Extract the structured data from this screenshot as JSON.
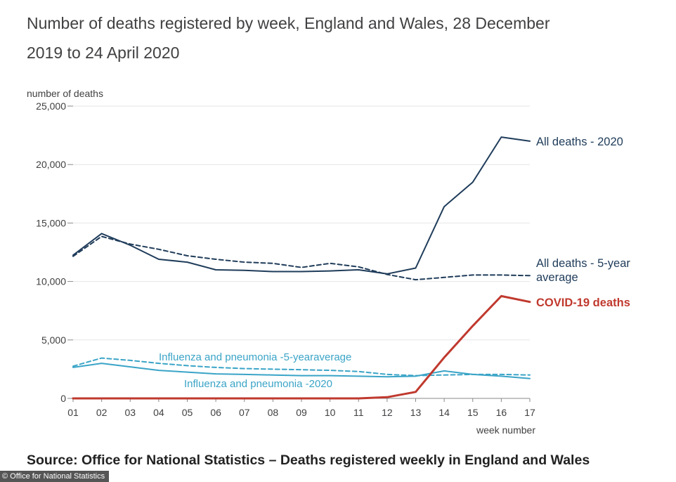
{
  "page": {
    "title": "Number of deaths registered by week, England and Wales, 28 December 2019 to 24 April 2020",
    "source": "Source: Office for National Statistics – Deaths registered weekly in England and Wales",
    "credit": "© Office for National Statistics"
  },
  "chart_data": {
    "type": "line",
    "title": "Number of deaths registered by week, England and Wales, 28 December 2019 to 24 April 2020",
    "ylabel": "number of deaths",
    "xlabel": "week number",
    "x": [
      "01",
      "02",
      "03",
      "04",
      "05",
      "06",
      "07",
      "08",
      "09",
      "10",
      "11",
      "12",
      "13",
      "14",
      "15",
      "16",
      "17"
    ],
    "ylim": [
      0,
      25000
    ],
    "yticks": [
      0,
      5000,
      10000,
      15000,
      20000,
      25000
    ],
    "ytick_labels": [
      "0",
      "5,000",
      "10,000",
      "15,000",
      "20,000",
      "25,000"
    ],
    "grid": true,
    "legend": "inline labels",
    "series": [
      {
        "name": "All deaths - 2020",
        "color": "#206095",
        "dash": false,
        "values": [
          12250,
          14100,
          13100,
          11900,
          11650,
          11000,
          10950,
          10850,
          10850,
          10900,
          11000,
          10650,
          11150,
          16400,
          18500,
          22350,
          22000
        ]
      },
      {
        "name": "All deaths - 5-year average",
        "color": "#206095",
        "dash": true,
        "values": [
          12150,
          13850,
          13200,
          12750,
          12200,
          11900,
          11650,
          11550,
          11200,
          11550,
          11250,
          10600,
          10150,
          10350,
          10550,
          10550,
          10500
        ]
      },
      {
        "name": "COVID-19 deaths",
        "color": "#b4302e",
        "dash": false,
        "values": [
          0,
          0,
          0,
          0,
          0,
          0,
          0,
          0,
          0,
          0,
          0,
          100,
          550,
          3500,
          6200,
          8750,
          8250
        ]
      },
      {
        "name": "Influenza and pneumonia -5-yearaverage",
        "color": "#27a0cc",
        "dash": true,
        "values": [
          2750,
          3450,
          3250,
          3000,
          2800,
          2650,
          2550,
          2500,
          2450,
          2400,
          2300,
          2050,
          1950,
          2000,
          2050,
          2050,
          2000
        ]
      },
      {
        "name": "Influenza and pneumonia -2020",
        "color": "#27a0cc",
        "dash": false,
        "values": [
          2650,
          3000,
          2700,
          2400,
          2250,
          2100,
          2050,
          2000,
          1950,
          1950,
          1900,
          1850,
          1900,
          2350,
          2050,
          1900,
          1700
        ]
      }
    ]
  }
}
